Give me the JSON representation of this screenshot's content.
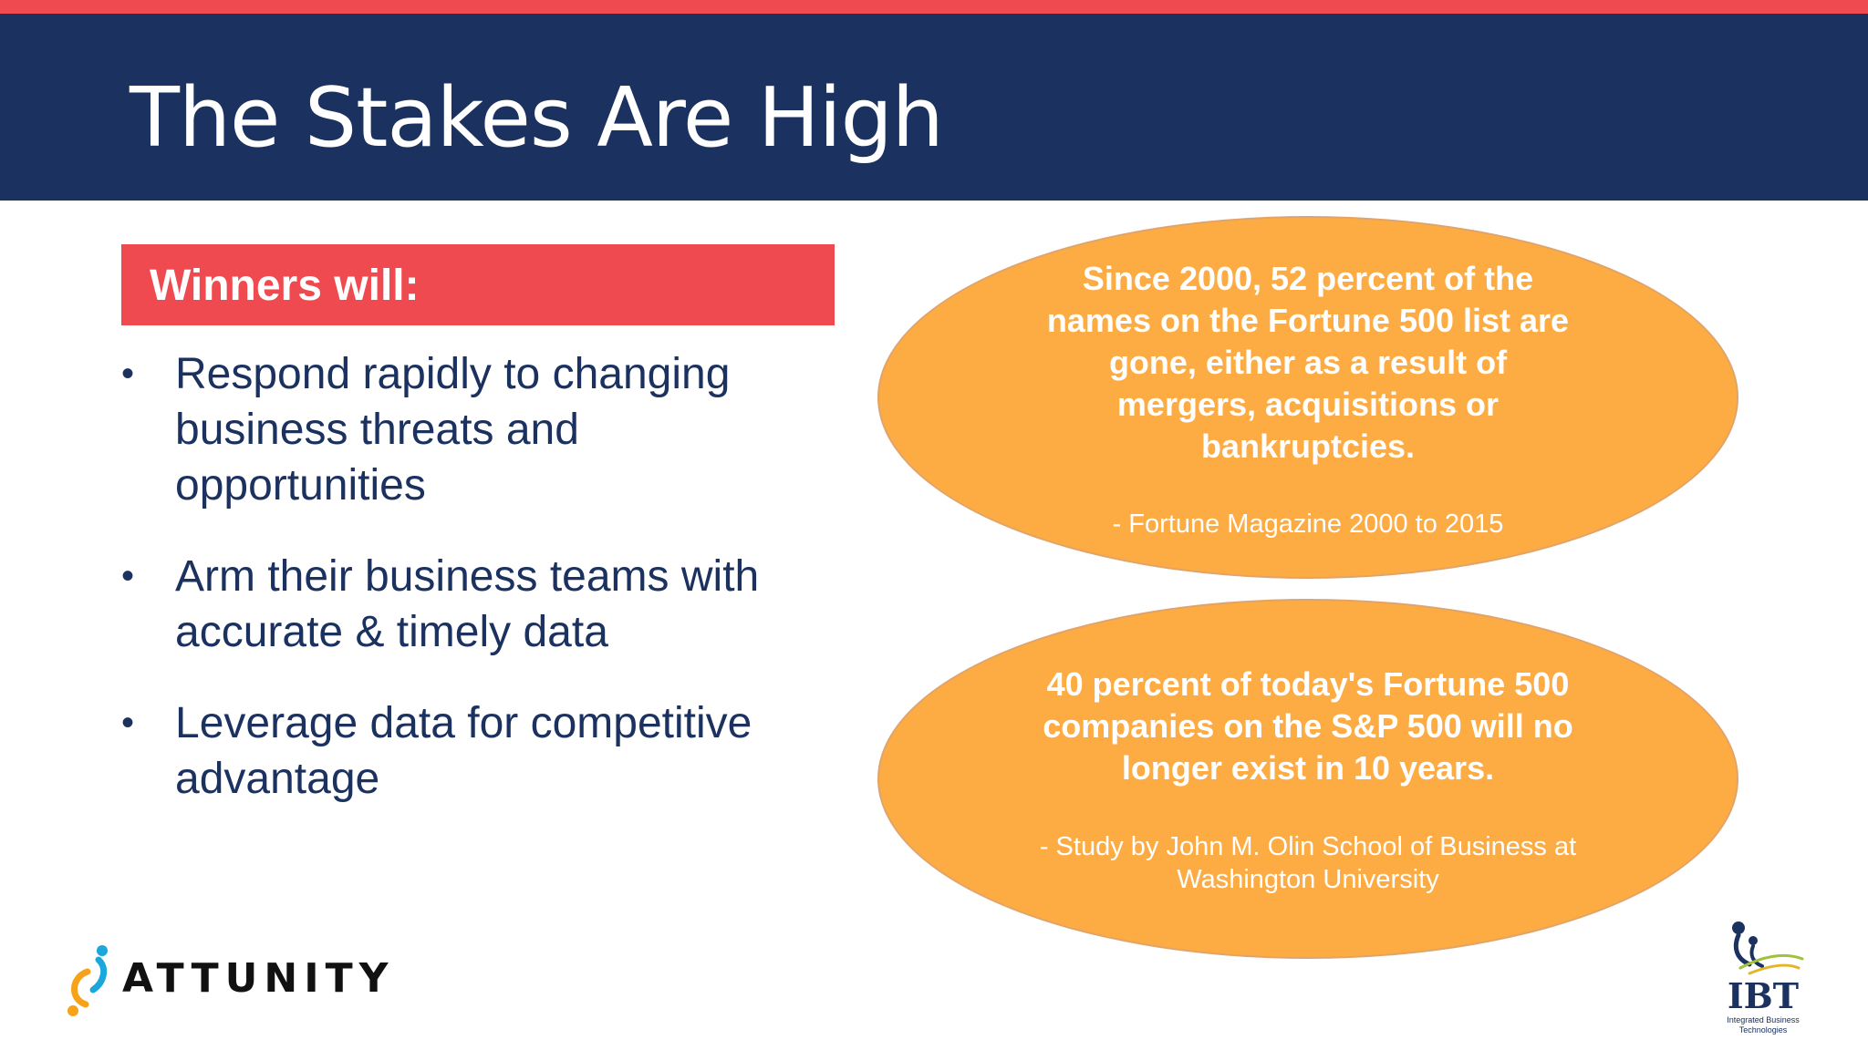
{
  "slide": {
    "title": "The Stakes Are High"
  },
  "left_panel": {
    "heading": "Winners will:",
    "bullets": [
      {
        "lines": [
          "Respond rapidly to changing",
          "business threats and",
          "opportunities"
        ]
      },
      {
        "lines": [
          "Arm their business teams with",
          "accurate & timely data"
        ]
      },
      {
        "lines": [
          "Leverage data for competitive",
          "advantage"
        ]
      }
    ],
    "bullet_glyph": "•"
  },
  "callouts": [
    {
      "quote_lines": [
        "Since 2000, 52 percent of the",
        "names on the Fortune 500 list are",
        "gone, either as a result of",
        "mergers, acquisitions or",
        "bankruptcies."
      ],
      "source_lines": [
        "- Fortune Magazine 2000 to 2015"
      ]
    },
    {
      "quote_lines": [
        "40 percent of today's Fortune 500",
        "companies on the S&P 500 will no",
        "longer exist in 10 years."
      ],
      "source_lines": [
        "- Study by John M. Olin School of Business at",
        "Washington University"
      ]
    }
  ],
  "logos": {
    "attunity": {
      "wordmark": "ATTUNITY"
    },
    "ibt": {
      "wordmark": "IBT",
      "tagline_lines": [
        "Integrated Business",
        "Technologies"
      ]
    }
  },
  "colors": {
    "accent_red": "#ef4a50",
    "navy": "#1b3160",
    "callout_orange": "#fdab43"
  }
}
